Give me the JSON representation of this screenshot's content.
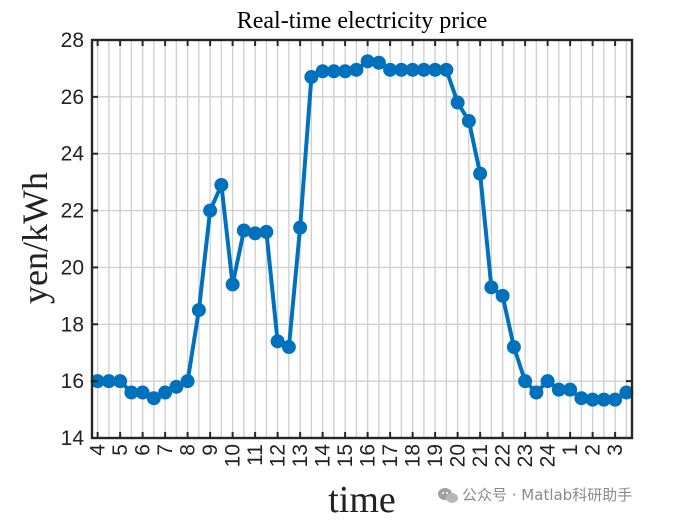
{
  "watermark": {
    "text": "公众号 · Matlab科研助手",
    "icon": "wechat-icon"
  },
  "colors": {
    "series": "#0072BD",
    "axis": "#262626",
    "grid": "#d0d0d0",
    "text": "#222222"
  },
  "chart_data": {
    "type": "line",
    "title": "Real-time electricity price",
    "xlabel": "time",
    "ylabel": "yen/kWh",
    "ylim": [
      14,
      28
    ],
    "yticks": [
      14,
      16,
      18,
      20,
      22,
      24,
      26,
      28
    ],
    "xtick_labels": [
      "4",
      "5",
      "6",
      "7",
      "8",
      "9",
      "10",
      "11",
      "12",
      "13",
      "14",
      "15",
      "16",
      "17",
      "18",
      "19",
      "20",
      "21",
      "22",
      "23",
      "24",
      "1",
      "2",
      "3"
    ],
    "grid": true,
    "series": [
      {
        "values": [
          16.0,
          16.0,
          16.0,
          15.6,
          15.6,
          15.4,
          15.6,
          15.8,
          16.0,
          18.5,
          22.0,
          22.9,
          19.4,
          21.3,
          21.2,
          21.25,
          17.4,
          17.2,
          21.4,
          26.7,
          26.9,
          26.9,
          26.9,
          26.95,
          27.25,
          27.2,
          26.95,
          26.95,
          26.95,
          26.95,
          26.95,
          26.95,
          25.8,
          25.15,
          23.3,
          19.3,
          19.0,
          17.2,
          16.0,
          15.6,
          16.0,
          15.7,
          15.7,
          15.4,
          15.35,
          15.35,
          15.35,
          15.6
        ]
      }
    ]
  }
}
